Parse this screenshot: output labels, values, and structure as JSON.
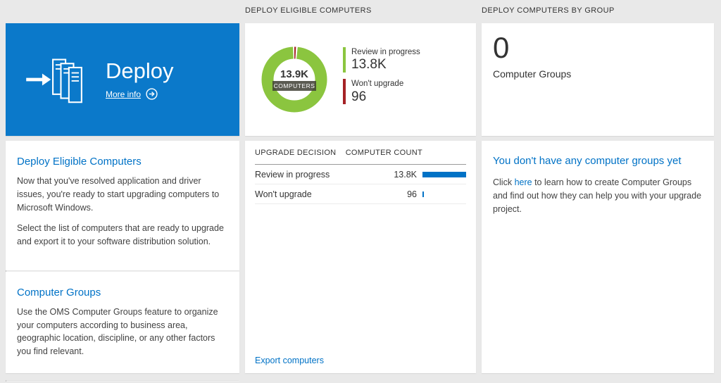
{
  "colors": {
    "tile_blue": "#0b79ca",
    "accent_blue": "#0072c6",
    "donut_green": "#8bc53f",
    "donut_red": "#a52226",
    "bar_blue": "#0072c6",
    "background": "#e9e9e9"
  },
  "left": {
    "tile": {
      "title": "Deploy",
      "more_info": "More info"
    },
    "sections": [
      {
        "title": "Deploy Eligible Computers",
        "paragraphs": [
          "Now that you've resolved application and driver issues, you're ready to start upgrading computers to Microsoft Windows.",
          "Select the list of computers that are ready to upgrade and export it to your software distribution solution."
        ]
      },
      {
        "title": "Computer Groups",
        "paragraphs": [
          "Use the OMS Computer Groups feature to organize your computers according to business area, geographic location, discipline, or any other factors you find relevant."
        ]
      }
    ]
  },
  "middle": {
    "header": "DEPLOY ELIGIBLE COMPUTERS",
    "donut": {
      "center_value": "13.9K",
      "center_label": "COMPUTERS"
    },
    "legend": [
      {
        "label": "Review in progress",
        "value": "13.8K"
      },
      {
        "label": "Won't upgrade",
        "value": "96"
      }
    ],
    "table": {
      "col1": "UPGRADE DECISION",
      "col2": "COMPUTER COUNT",
      "rows": [
        {
          "label": "Review in progress",
          "value": "13.8K",
          "bar_pct": 100
        },
        {
          "label": "Won't upgrade",
          "value": "96",
          "bar_pct": 3
        }
      ]
    },
    "export_link": "Export computers"
  },
  "right": {
    "header": "DEPLOY COMPUTERS BY GROUP",
    "count": "0",
    "count_label": "Computer Groups",
    "empty": {
      "title": "You don't have any computer groups yet",
      "text_pre": "Click ",
      "link": "here",
      "text_post": " to learn how to create Computer Groups and find out how they can help you with your upgrade project."
    }
  },
  "chart_data": {
    "type": "pie",
    "title": "DEPLOY ELIGIBLE COMPUTERS",
    "categories": [
      "Review in progress",
      "Won't upgrade"
    ],
    "values": [
      13800,
      96
    ],
    "total": 13900,
    "center_label": "13.9K COMPUTERS",
    "colors": [
      "#8bc53f",
      "#a52226"
    ],
    "legend_position": "right"
  }
}
